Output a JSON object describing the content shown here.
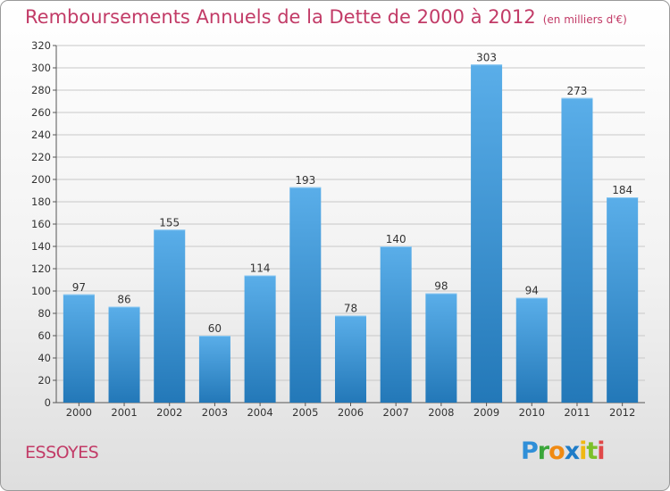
{
  "header": {
    "title": "Remboursements Annuels de la Dette de 2000 à 2012",
    "subtitle": "(en milliers d'€)"
  },
  "footer": {
    "commune": "ESSOYES",
    "logo_text": "Proxiti"
  },
  "colors": {
    "title": "#c23b67",
    "bar_top": "#5aaee9",
    "bar_bottom": "#2378b8",
    "grid": "#c8c8c8"
  },
  "chart_data": {
    "type": "bar",
    "title": "Remboursements Annuels de la Dette de 2000 à 2012",
    "subtitle": "(en milliers d'€)",
    "xlabel": "",
    "ylabel": "",
    "categories": [
      "2000",
      "2001",
      "2002",
      "2003",
      "2004",
      "2005",
      "2006",
      "2007",
      "2008",
      "2009",
      "2010",
      "2011",
      "2012"
    ],
    "values": [
      97,
      86,
      155,
      60,
      114,
      193,
      78,
      140,
      98,
      303,
      94,
      273,
      184
    ],
    "ylim": [
      0,
      320
    ],
    "yticks": [
      0,
      20,
      40,
      60,
      80,
      100,
      120,
      140,
      160,
      180,
      200,
      220,
      240,
      260,
      280,
      300,
      320
    ],
    "grid": true,
    "data_labels": true
  }
}
